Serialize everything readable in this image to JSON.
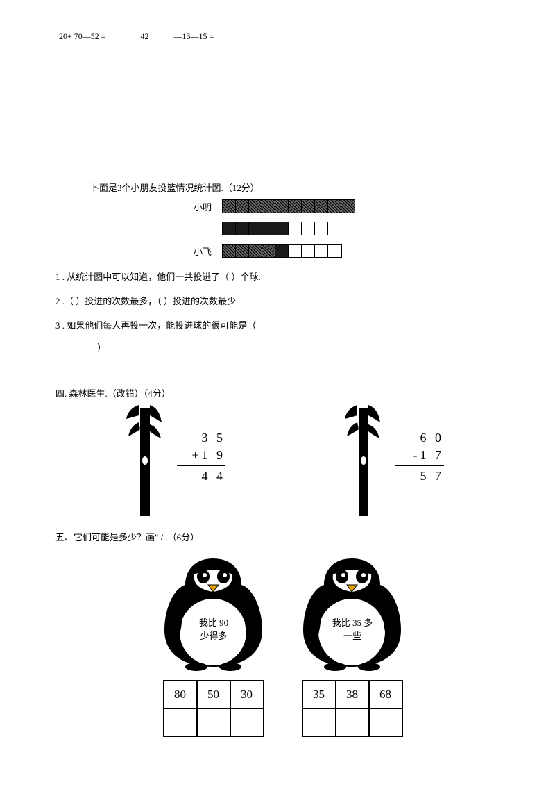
{
  "topEquations": {
    "eq1": "20+ 70—52 =",
    "eq2_left": "42",
    "eq2_right": "—13—15 ="
  },
  "section3": {
    "title": "卜面是3个小朋友投篮情况统计图.（12分）",
    "rows": [
      {
        "label": "小明",
        "cells": [
          "f",
          "f",
          "f",
          "f",
          "f",
          "f",
          "f",
          "f",
          "f",
          "f"
        ]
      },
      {
        "label": "",
        "cells": [
          "s",
          "s",
          "s",
          "s",
          "s",
          "e",
          "e",
          "e",
          "e",
          "e"
        ]
      },
      {
        "label": "小飞",
        "cells": [
          "f",
          "f",
          "f",
          "f",
          "s",
          "e",
          "e",
          "e",
          "e"
        ]
      }
    ],
    "q1": "1 . 从统计图中可以知道，他们一共投进了（             ）个球.",
    "q2": "2  .（        ）投进的次数最多，（            ）投进的次数最少",
    "q3a": "3  . 如果他们每人再投一次，能投进球的很可能是（",
    "q3b": "）"
  },
  "section4": {
    "title": "四. 森林医生.（改错）（4分）",
    "problem1": {
      "line1": "3 5",
      "line2": "+1 9",
      "result": "4 4"
    },
    "problem2": {
      "line1": "6 0",
      "line2": "-1 7",
      "result": "5 7"
    }
  },
  "section5": {
    "title": "五、它们可能是多少？画\" /        .（6分）",
    "penguin1": {
      "line1": "我比 90",
      "line2": "少得多"
    },
    "penguin2": {
      "line1": "我比 35 多",
      "line2": "一些"
    },
    "options1": [
      "80",
      "50",
      "30"
    ],
    "options2": [
      "35",
      "38",
      "68"
    ]
  }
}
